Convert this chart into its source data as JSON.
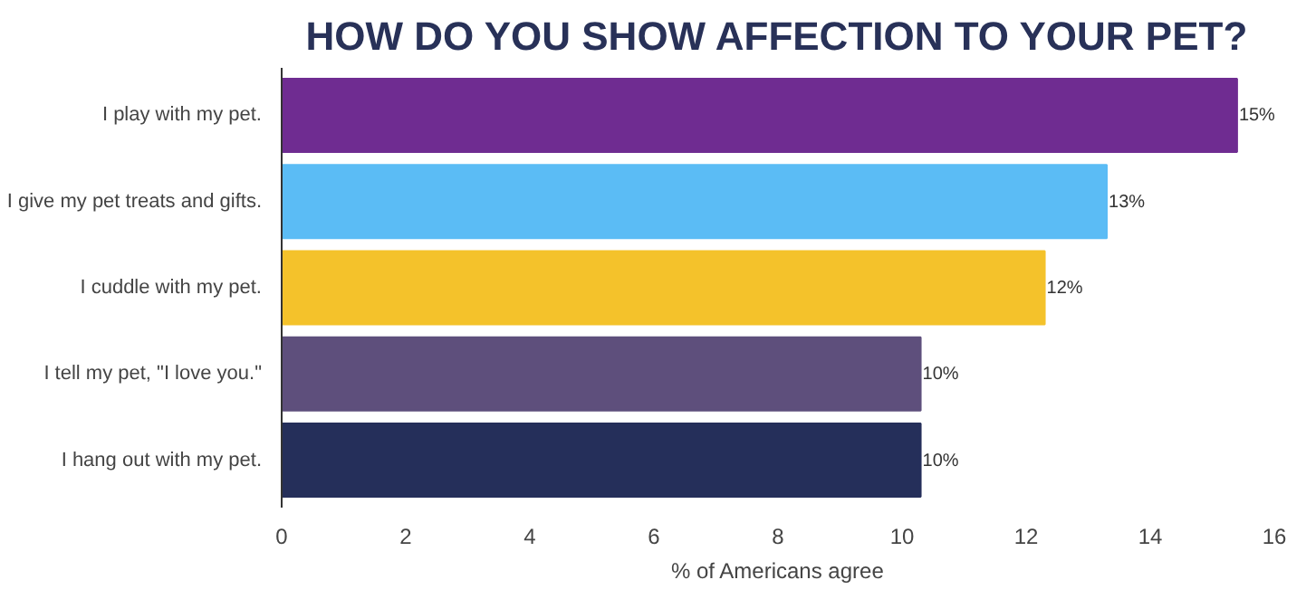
{
  "chart_data": {
    "type": "bar",
    "orientation": "horizontal",
    "title": "HOW DO YOU SHOW AFFECTION TO YOUR PET?",
    "xlabel": "% of Americans agree",
    "categories": [
      "I play with my pet.",
      "I give my pet treats and gifts.",
      "I cuddle with my pet.",
      "I tell my pet, \"I love you.\"",
      "I hang out with my pet."
    ],
    "values": [
      15.4,
      13.3,
      12.3,
      10.3,
      10.3
    ],
    "colors": [
      "#6f2c91",
      "#5bbcf5",
      "#f4c22b",
      "#5e4f7c",
      "#252f5a"
    ],
    "value_labels": [
      "15%",
      "13%",
      "12%",
      "10%",
      "10%"
    ],
    "xlim": [
      0,
      16
    ],
    "xticks": [
      0,
      2,
      4,
      6,
      8,
      10,
      12,
      14,
      16
    ],
    "grid": false
  }
}
